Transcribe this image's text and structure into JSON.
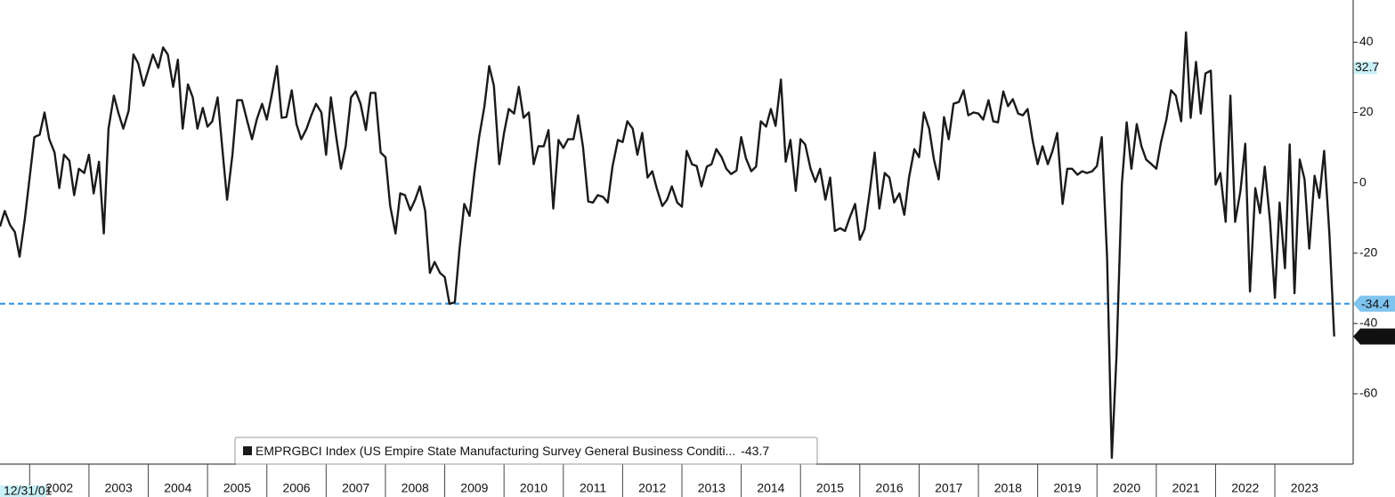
{
  "chart_data": {
    "type": "line",
    "series": [
      {
        "name": "EMPRGBCI Index (US Empire State Manufacturing Survey General Business Conditi...",
        "color": "#1a1a1a",
        "values": [
          -12.4,
          -8,
          -12,
          -14,
          -21,
          -10,
          1.5,
          13,
          13.7,
          20,
          12.4,
          8.6,
          -1.5,
          8,
          6.3,
          -3.5,
          4,
          2.8,
          8,
          -3,
          6,
          -14.4,
          15.4,
          24.8,
          19.7,
          15.4,
          20.5,
          36.5,
          34,
          27.6,
          32,
          36.5,
          32.7,
          38.5,
          36.5,
          27.3,
          35,
          15.4,
          28,
          24.3,
          15.4,
          21.3,
          16,
          17.5,
          24.3,
          9.6,
          -4.8,
          8,
          23.5,
          23.5,
          17.5,
          12.4,
          18,
          22.5,
          18,
          24.8,
          33.2,
          18.5,
          18.7,
          26.3,
          16.7,
          12.4,
          15.4,
          19.2,
          22.5,
          20,
          8,
          24.3,
          13,
          4,
          10.4,
          24.3,
          26,
          22.5,
          15,
          25.6,
          25.6,
          8.6,
          7.3,
          -6.6,
          -14.4,
          -3,
          -3.5,
          -7.8,
          -4.8,
          -1,
          -8,
          -25.6,
          -22.5,
          -25.6,
          -26.8,
          -34.4,
          -34,
          -18.7,
          -6,
          -9.4,
          2.8,
          13,
          21.8,
          33.2,
          27.6,
          5.3,
          14.2,
          21,
          19.7,
          27.3,
          18.5,
          20,
          5.3,
          10.4,
          10.4,
          15,
          -7.3,
          12.2,
          9.9,
          12.4,
          12.4,
          19.2,
          10.4,
          -5.3,
          -5.6,
          -3.5,
          -4,
          -5.6,
          4.8,
          12.2,
          11.6,
          17.5,
          15.4,
          8,
          14.2,
          1.5,
          3.3,
          -1.8,
          -6.6,
          -4.8,
          -1,
          -5.6,
          -6.8,
          9.1,
          5.3,
          4.8,
          -1,
          4.6,
          5.3,
          9.6,
          7.3,
          4,
          2.5,
          3.5,
          13,
          7,
          3.3,
          4.6,
          17.5,
          16,
          21,
          16.2,
          29.4,
          6,
          12.2,
          -2.3,
          12.4,
          10.9,
          4,
          0.3,
          4,
          -4.8,
          1.5,
          -13.7,
          -12.9,
          -13.7,
          -9.9,
          -6,
          -16.2,
          -13.2,
          -2.3,
          8.6,
          -7.3,
          2.8,
          1.5,
          -5.6,
          -3,
          -9.1,
          1.5,
          9.6,
          7.3,
          20,
          15.4,
          6.6,
          1,
          18.7,
          12.4,
          22.5,
          23,
          26.3,
          19.2,
          20,
          19.7,
          18,
          23.5,
          17.5,
          17.2,
          26,
          21.8,
          23.8,
          19.7,
          19.2,
          21,
          11.6,
          5.3,
          10.4,
          5.3,
          9.1,
          14.2,
          -6,
          4,
          4,
          2.3,
          3.3,
          2.8,
          3.3,
          4.8,
          13,
          -21.3,
          -78.2,
          -49.1,
          -0.3,
          17.2,
          4,
          16.7,
          10.4,
          6.6,
          5.3,
          4,
          11.6,
          18,
          26.3,
          24.8,
          17.5,
          42.8,
          18.5,
          34.4,
          19.7,
          31.1,
          31.9,
          -0.5,
          2.8,
          -11.1,
          24.8,
          -11.1,
          -2.3,
          11.1,
          -30.9,
          -1.5,
          -8.6,
          4.6,
          -11.1,
          -32.7,
          -5.6,
          -24.3,
          10.9,
          -31.4,
          6.6,
          1,
          -18.7,
          2,
          -4.3,
          9.1,
          -14.5,
          -43.7
        ]
      }
    ],
    "x": [
      2001.5,
      2001.58,
      2001.67,
      2001.75,
      2001.83,
      2001.92,
      2002,
      2002.08,
      2002.17,
      2002.25,
      2002.33,
      2002.42,
      2002.5,
      2002.58,
      2002.67,
      2002.75,
      2002.83,
      2002.92,
      2003,
      2003.08,
      2003.17,
      2003.25,
      2003.33,
      2003.42,
      2003.5,
      2003.58,
      2003.67,
      2003.75,
      2003.83,
      2003.92,
      2004,
      2004.08,
      2004.17,
      2004.25,
      2004.33,
      2004.42,
      2004.5,
      2004.58,
      2004.67,
      2004.75,
      2004.83,
      2004.92,
      2005,
      2005.08,
      2005.17,
      2005.25,
      2005.33,
      2005.42,
      2005.5,
      2005.58,
      2005.67,
      2005.75,
      2005.83,
      2005.92,
      2006,
      2006.08,
      2006.17,
      2006.25,
      2006.33,
      2006.42,
      2006.5,
      2006.58,
      2006.67,
      2006.75,
      2006.83,
      2006.92,
      2007,
      2007.08,
      2007.17,
      2007.25,
      2007.33,
      2007.42,
      2007.5,
      2007.58,
      2007.67,
      2007.75,
      2007.83,
      2007.92,
      2008,
      2008.08,
      2008.17,
      2008.25,
      2008.33,
      2008.42,
      2008.5,
      2008.58,
      2008.67,
      2008.75,
      2008.83,
      2008.92,
      2009,
      2009.08,
      2009.17,
      2009.25,
      2009.33,
      2009.42,
      2009.5,
      2009.58,
      2009.67,
      2009.75,
      2009.83,
      2009.92,
      2010,
      2010.08,
      2010.17,
      2010.25,
      2010.33,
      2010.42,
      2010.5,
      2010.58,
      2010.67,
      2010.75,
      2010.83,
      2010.92,
      2011,
      2011.08,
      2011.17,
      2011.25,
      2011.33,
      2011.42,
      2011.5,
      2011.58,
      2011.67,
      2011.75,
      2011.83,
      2011.92,
      2012,
      2012.08,
      2012.17,
      2012.25,
      2012.33,
      2012.42,
      2012.5,
      2012.58,
      2012.67,
      2012.75,
      2012.83,
      2012.92,
      2013,
      2013.08,
      2013.17,
      2013.25,
      2013.33,
      2013.42,
      2013.5,
      2013.58,
      2013.67,
      2013.75,
      2013.83,
      2013.92,
      2014,
      2014.08,
      2014.17,
      2014.25,
      2014.33,
      2014.42,
      2014.5,
      2014.58,
      2014.67,
      2014.75,
      2014.83,
      2014.92,
      2015,
      2015.08,
      2015.17,
      2015.25,
      2015.33,
      2015.42,
      2015.5,
      2015.58,
      2015.67,
      2015.75,
      2015.83,
      2015.92,
      2016,
      2016.08,
      2016.17,
      2016.25,
      2016.33,
      2016.42,
      2016.5,
      2016.58,
      2016.67,
      2016.75,
      2016.83,
      2016.92,
      2017,
      2017.08,
      2017.17,
      2017.25,
      2017.33,
      2017.42,
      2017.5,
      2017.58,
      2017.67,
      2017.75,
      2017.83,
      2017.92,
      2018,
      2018.08,
      2018.17,
      2018.25,
      2018.33,
      2018.42,
      2018.5,
      2018.58,
      2018.67,
      2018.75,
      2018.83,
      2018.92,
      2019,
      2019.08,
      2019.17,
      2019.25,
      2019.33,
      2019.42,
      2019.5,
      2019.58,
      2019.67,
      2019.75,
      2019.83,
      2019.92,
      2020,
      2020.08,
      2020.17,
      2020.25,
      2020.33,
      2020.42,
      2020.5,
      2020.58,
      2020.67,
      2020.75,
      2020.83,
      2020.92,
      2021,
      2021.08,
      2021.17,
      2021.25,
      2021.33,
      2021.42,
      2021.5,
      2021.58,
      2021.67,
      2021.75,
      2021.83,
      2021.92,
      2022,
      2022.08,
      2022.17,
      2022.25,
      2022.33,
      2022.42,
      2022.5,
      2022.58,
      2022.67,
      2022.75,
      2022.83,
      2022.92,
      2023,
      2023.08,
      2023.17,
      2023.25,
      2023.33,
      2023.42,
      2023.5,
      2023.58,
      2023.67,
      2023.75,
      2023.83,
      2023.92,
      2024
    ],
    "xlim": [
      2001.5,
      2024.2
    ],
    "xticks": [
      2002,
      2003,
      2004,
      2005,
      2006,
      2007,
      2008,
      2009,
      2010,
      2011,
      2012,
      2013,
      2014,
      2015,
      2016,
      2017,
      2018,
      2019,
      2020,
      2021,
      2022,
      2023
    ],
    "ylim": [
      -80,
      52
    ],
    "yticks": [
      -60,
      -40,
      -20,
      0,
      20,
      40
    ],
    "reference_line": {
      "value": -34.4,
      "color": "#2a8fe0"
    },
    "highlight_label": 32.7,
    "start_date_label": "12/31/01",
    "legend": "bottom-left"
  }
}
